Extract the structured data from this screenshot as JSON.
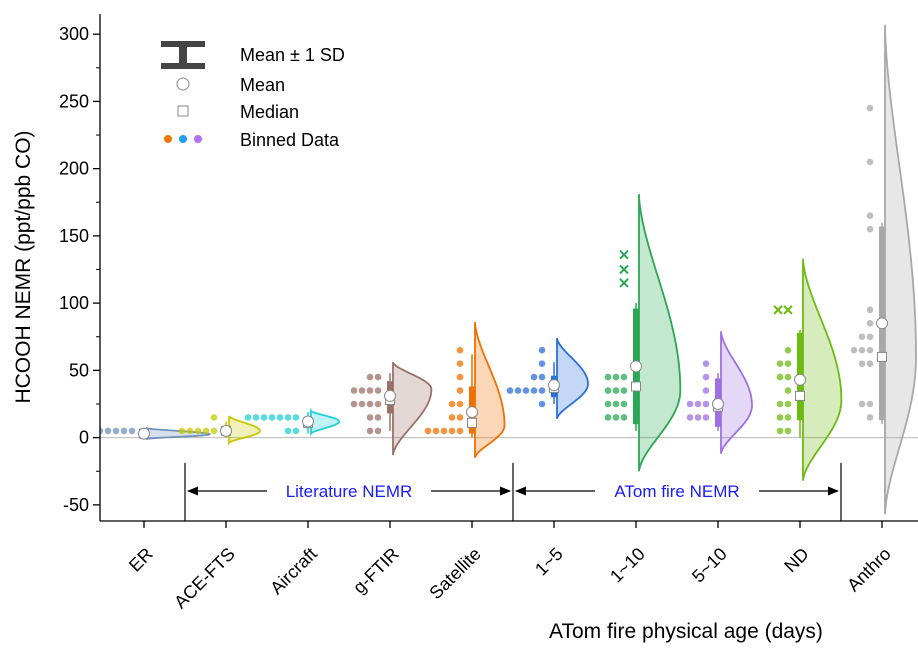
{
  "chart_data": {
    "type": "violin",
    "ylabel": "HCOOH NEMR (ppt/ppb CO)",
    "xlabel": "ATom fire physical age (days)",
    "ylim": [
      -62,
      315
    ],
    "yticks": [
      -50,
      0,
      50,
      100,
      150,
      200,
      250,
      300
    ],
    "reference_line_y": 0,
    "categories": [
      "ER",
      "ACE-FTS",
      "Aircraft",
      "g-FTIR",
      "Satellite",
      "1~5",
      "1~10",
      "5~10",
      "ND",
      "Anthro"
    ],
    "series": [
      {
        "category": "ER",
        "color": "#7092be",
        "mean": 3,
        "median": 3,
        "sd": 1.5,
        "box": [
          1,
          5
        ],
        "whisker": [
          0,
          6
        ],
        "points": [
          5,
          5,
          5,
          5,
          5,
          5,
          5,
          5,
          5,
          5,
          5
        ],
        "outliers": [],
        "kde": {
          "lo": -1,
          "hi": 7,
          "mode": 2.5,
          "width": 0.85
        }
      },
      {
        "category": "ACE-FTS",
        "color": "#c8c800",
        "mean": 5,
        "median": 5,
        "sd": 3,
        "box": [
          2,
          8
        ],
        "whisker": [
          0,
          12
        ],
        "points": [
          5,
          5,
          5,
          5,
          5,
          15
        ],
        "outliers": [],
        "kde": {
          "lo": -4,
          "hi": 16,
          "mode": 5,
          "width": 0.42
        }
      },
      {
        "category": "Aircraft",
        "color": "#20d0d8",
        "mean": 12,
        "median": 11,
        "sd": 4,
        "box": [
          7,
          15
        ],
        "whisker": [
          3,
          19
        ],
        "points": [
          15,
          15,
          15,
          15,
          15,
          15,
          15,
          5,
          5
        ],
        "outliers": [],
        "kde": {
          "lo": 3,
          "hi": 20,
          "mode": 12,
          "width": 0.38
        }
      },
      {
        "category": "g-FTIR",
        "color": "#9a7068",
        "mean": 31,
        "median": 28,
        "sd": 14,
        "box": [
          18,
          42
        ],
        "whisker": [
          5,
          48
        ],
        "points": [
          45,
          45,
          35,
          35,
          35,
          35,
          25,
          25,
          25,
          25,
          15,
          15,
          5,
          5
        ],
        "outliers": [],
        "kde": {
          "lo": -13,
          "hi": 56,
          "mode": 36,
          "width": 0.52
        }
      },
      {
        "category": "Satellite",
        "color": "#f07000",
        "mean": 19,
        "median": 11,
        "sd": 18,
        "box": [
          3,
          38
        ],
        "whisker": [
          0,
          62
        ],
        "points": [
          65,
          55,
          45,
          35,
          25,
          25,
          15,
          15,
          5,
          5,
          5,
          5,
          5
        ],
        "outliers": [],
        "kde": {
          "lo": -15,
          "hi": 86,
          "mode": 9,
          "width": 0.4
        }
      },
      {
        "category": "1~5",
        "color": "#2c6fd8",
        "mean": 39,
        "median": 37,
        "sd": 9,
        "box": [
          30,
          46
        ],
        "whisker": [
          25,
          56
        ],
        "points": [
          65,
          55,
          45,
          45,
          35,
          35,
          35,
          35,
          35,
          25
        ],
        "outliers": [],
        "kde": {
          "lo": 14,
          "hi": 74,
          "mode": 40,
          "width": 0.42
        }
      },
      {
        "category": "1~10",
        "color": "#28a854",
        "mean": 53,
        "median": 38,
        "sd": 44,
        "box": [
          10,
          96
        ],
        "whisker": [
          5,
          100
        ],
        "points": [
          45,
          45,
          45,
          35,
          35,
          35,
          25,
          25,
          25,
          15,
          15,
          15
        ],
        "outliers": [
          136,
          125,
          115
        ],
        "kde": {
          "lo": -25,
          "hi": 181,
          "mode": 35,
          "width": 0.56
        }
      },
      {
        "category": "5~10",
        "color": "#a070e0",
        "mean": 25,
        "median": 23,
        "sd": 11,
        "box": [
          8,
          44
        ],
        "whisker": [
          5,
          48
        ],
        "points": [
          55,
          45,
          35,
          25,
          25,
          25,
          15,
          15,
          15
        ],
        "outliers": [],
        "kde": {
          "lo": -12,
          "hi": 79,
          "mode": 24,
          "width": 0.42
        }
      },
      {
        "category": "ND",
        "color": "#6cbb10",
        "mean": 43,
        "median": 31,
        "sd": 25,
        "box": [
          13,
          78
        ],
        "whisker": [
          0,
          80
        ],
        "points": [
          65,
          55,
          55,
          45,
          45,
          35,
          25,
          25,
          15,
          15,
          5,
          5
        ],
        "outliers": [
          95,
          95
        ],
        "kde": {
          "lo": -32,
          "hi": 133,
          "mode": 28,
          "width": 0.52
        }
      },
      {
        "category": "Anthro",
        "color": "#a8a8a8",
        "mean": 85,
        "median": 60,
        "sd": 70,
        "box": [
          13,
          157
        ],
        "whisker": [
          10,
          160
        ],
        "points": [
          245,
          205,
          165,
          155,
          95,
          85,
          75,
          75,
          65,
          65,
          65,
          55,
          55,
          25,
          25,
          15
        ],
        "outliers": [],
        "kde": {
          "lo": -57,
          "hi": 307,
          "mode": 60,
          "width": 0.42
        }
      }
    ],
    "group_annotations": [
      {
        "text": "Literature NEMR",
        "from_category": 1,
        "to_category": 4
      },
      {
        "text": "ATom fire NEMR",
        "from_category": 5,
        "to_category": 8
      }
    ],
    "legend": {
      "position": "top-left",
      "items": [
        {
          "label": "Mean ± 1 SD",
          "symbol": "bar"
        },
        {
          "label": "Mean",
          "symbol": "circle"
        },
        {
          "label": "Median",
          "symbol": "square"
        },
        {
          "label": "Binned Data",
          "symbol": "dots",
          "colors": [
            "#f07800",
            "#1ea0f0",
            "#b070f0"
          ]
        }
      ]
    }
  }
}
